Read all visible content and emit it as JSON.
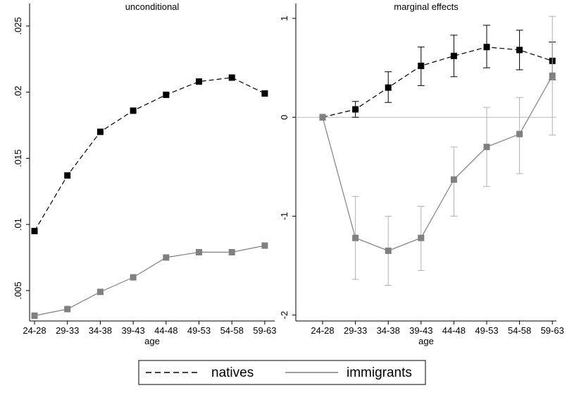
{
  "chart_data": [
    {
      "type": "line",
      "title": "unconditional",
      "x_label": "age",
      "categories": [
        "24-28",
        "29-33",
        "34-38",
        "39-43",
        "44-48",
        "49-53",
        "54-58",
        "59-63"
      ],
      "ylim": [
        0.0027,
        0.0267
      ],
      "yticks": [
        {
          "value": 0.005,
          "label": ".005"
        },
        {
          "value": 0.01,
          "label": ".01"
        },
        {
          "value": 0.015,
          "label": ".015"
        },
        {
          "value": 0.02,
          "label": ".02"
        },
        {
          "value": 0.025,
          "label": ".025"
        }
      ],
      "series": [
        {
          "name": "natives",
          "color": "#000000",
          "line_style": "dashed",
          "values": [
            0.0095,
            0.0137,
            0.017,
            0.0186,
            0.0198,
            0.0208,
            0.0211,
            0.0199
          ]
        },
        {
          "name": "immigrants",
          "color": "#808080",
          "line_style": "solid",
          "values": [
            0.0031,
            0.0036,
            0.0049,
            0.006,
            0.0075,
            0.0079,
            0.0079,
            0.0084
          ]
        }
      ]
    },
    {
      "type": "line",
      "title": "marginal effects",
      "x_label": "age",
      "categories": [
        "24-28",
        "29-33",
        "34-38",
        "39-43",
        "44-48",
        "49-53",
        "54-58",
        "59-63"
      ],
      "ylim": [
        -2.06,
        1.15
      ],
      "yticks": [
        -2,
        -1,
        0,
        1
      ],
      "reference_line": 0,
      "series": [
        {
          "name": "natives",
          "color": "#000000",
          "line_style": "dashed",
          "error_color": "#000000",
          "values": [
            0,
            0.08,
            0.3,
            0.52,
            0.62,
            0.71,
            0.68,
            0.57
          ],
          "lower": [
            null,
            0,
            0.15,
            0.32,
            0.41,
            0.5,
            0.48,
            0.38
          ],
          "upper": [
            null,
            0.16,
            0.46,
            0.71,
            0.83,
            0.93,
            0.88,
            0.76
          ]
        },
        {
          "name": "immigrants",
          "color": "#808080",
          "line_style": "solid",
          "error_color": "#b0b0b0",
          "values": [
            0,
            -1.22,
            -1.35,
            -1.22,
            -0.63,
            -0.3,
            -0.17,
            0.42
          ],
          "lower": [
            null,
            -1.64,
            -1.7,
            -1.55,
            -1.0,
            -0.7,
            -0.57,
            -0.18
          ],
          "upper": [
            null,
            -0.8,
            -1.0,
            -0.9,
            -0.3,
            0.1,
            0.2,
            1.02
          ]
        }
      ]
    }
  ]
}
